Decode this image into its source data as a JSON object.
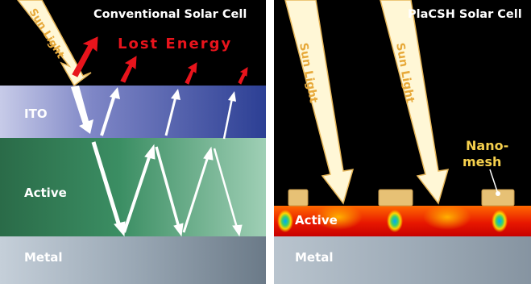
{
  "left_panel": {
    "title": "Conventional Solar Cell",
    "sunlight_label": "Sun Light",
    "lost_energy_label": "Lost Energy",
    "layers": {
      "ito": "ITO",
      "active": "Active",
      "metal": "Metal"
    }
  },
  "right_panel": {
    "title": "PlaCSH Solar Cell",
    "sunlight_label_1": "Sun Light",
    "sunlight_label_2": "Sun Light",
    "nanomesh_label_line1": "Nano-",
    "nanomesh_label_line2": "mesh",
    "layers": {
      "active": "Active",
      "metal": "Metal"
    }
  },
  "colors": {
    "background": "#000000",
    "lost_energy_red": "#e8141c",
    "sunlight_beam": "#fff7d6",
    "nanomesh_gold": "#e7c175",
    "ito_blue": "#2c3f94",
    "active_green": "#2f7f52",
    "metal_gray": "#8c9aa6",
    "nanomesh_label_yellow": "#f6d04d"
  }
}
